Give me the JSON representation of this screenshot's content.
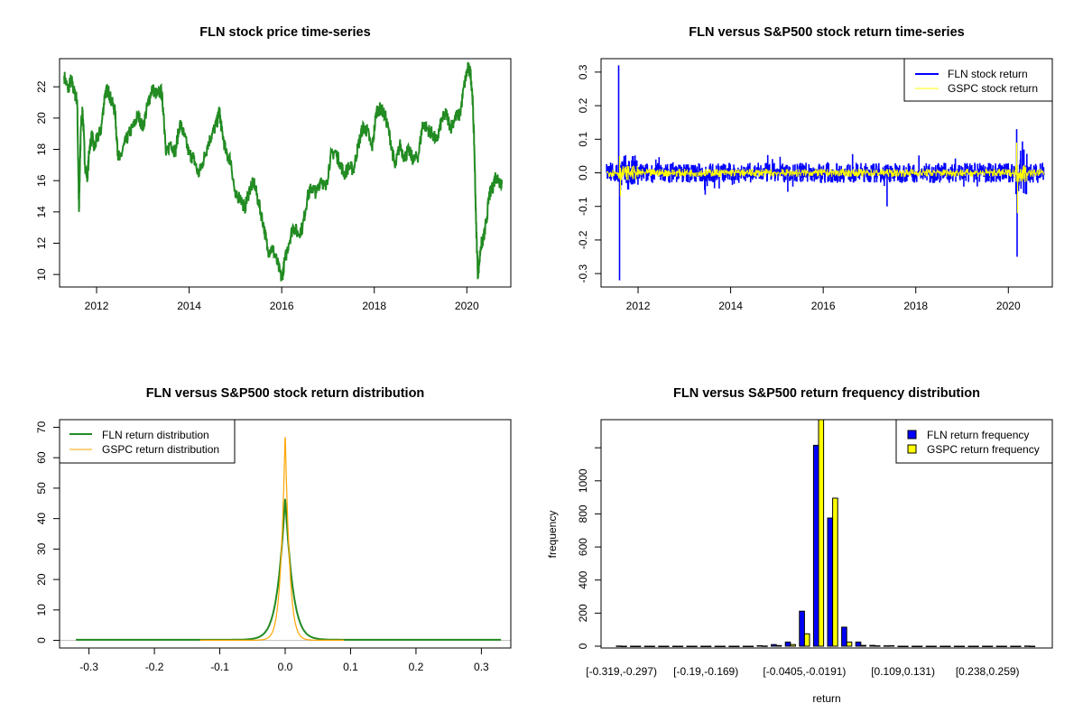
{
  "chart_data": [
    {
      "type": "line",
      "title": "FLN stock price time-series",
      "xlabel": "",
      "ylabel": "",
      "xlim": [
        2011.2,
        2020.95
      ],
      "ylim": [
        9.2,
        23.8
      ],
      "xticks": [
        2012,
        2014,
        2016,
        2018,
        2020
      ],
      "xtick_labels": [
        "2012",
        "2014",
        "2016",
        "2018",
        "2020"
      ],
      "yticks": [
        10,
        12,
        14,
        16,
        18,
        20,
        22
      ],
      "ytick_labels": [
        "10",
        "12",
        "14",
        "16",
        "18",
        "20",
        "22"
      ],
      "color": "#228B22",
      "series": [
        {
          "name": "FLN price",
          "x": [
            2011.3,
            2011.38,
            2011.45,
            2011.52,
            2011.58,
            2011.62,
            2011.66,
            2011.7,
            2011.75,
            2011.8,
            2011.85,
            2011.9,
            2011.95,
            2012.0,
            2012.1,
            2012.18,
            2012.25,
            2012.32,
            2012.4,
            2012.45,
            2012.5,
            2012.6,
            2012.7,
            2012.8,
            2012.9,
            2013.0,
            2013.1,
            2013.2,
            2013.3,
            2013.4,
            2013.45,
            2013.5,
            2013.6,
            2013.7,
            2013.8,
            2013.9,
            2014.0,
            2014.1,
            2014.2,
            2014.3,
            2014.4,
            2014.5,
            2014.6,
            2014.65,
            2014.7,
            2014.8,
            2014.9,
            2015.0,
            2015.1,
            2015.2,
            2015.3,
            2015.4,
            2015.5,
            2015.6,
            2015.7,
            2015.8,
            2015.9,
            2016.0,
            2016.05,
            2016.15,
            2016.25,
            2016.35,
            2016.45,
            2016.55,
            2016.65,
            2016.75,
            2016.85,
            2016.95,
            2017.05,
            2017.15,
            2017.25,
            2017.35,
            2017.45,
            2017.55,
            2017.65,
            2017.75,
            2017.85,
            2017.95,
            2018.05,
            2018.15,
            2018.25,
            2018.35,
            2018.45,
            2018.55,
            2018.65,
            2018.75,
            2018.85,
            2018.95,
            2019.05,
            2019.15,
            2019.25,
            2019.35,
            2019.45,
            2019.55,
            2019.65,
            2019.75,
            2019.85,
            2019.95,
            2020.02,
            2020.08,
            2020.12,
            2020.16,
            2020.2,
            2020.24,
            2020.3,
            2020.36,
            2020.42,
            2020.48,
            2020.55,
            2020.62,
            2020.7,
            2020.76
          ],
          "y": [
            22.7,
            21.8,
            22.5,
            21.6,
            21.2,
            14.0,
            19.5,
            20.5,
            17.0,
            16.2,
            18.2,
            18.9,
            18.0,
            18.6,
            19.3,
            21.6,
            21.8,
            21.1,
            20.4,
            18.0,
            17.3,
            18.3,
            19.0,
            19.5,
            20.2,
            19.4,
            20.8,
            21.9,
            21.5,
            21.7,
            20.3,
            17.6,
            18.5,
            17.8,
            19.7,
            18.8,
            17.7,
            17.4,
            16.4,
            17.2,
            18.3,
            19.0,
            19.7,
            20.5,
            19.3,
            17.7,
            17.3,
            14.9,
            15.0,
            14.2,
            15.4,
            15.9,
            14.6,
            13.3,
            11.5,
            11.7,
            10.8,
            9.7,
            10.6,
            12.0,
            13.1,
            12.6,
            13.0,
            14.9,
            15.6,
            15.2,
            16.2,
            15.4,
            17.5,
            17.9,
            17.2,
            16.4,
            16.9,
            16.7,
            18.2,
            19.4,
            19.2,
            18.0,
            20.5,
            20.6,
            20.0,
            18.6,
            16.8,
            18.3,
            17.5,
            17.9,
            17.3,
            17.6,
            19.7,
            19.3,
            19.0,
            18.5,
            19.8,
            20.3,
            19.4,
            20.1,
            20.2,
            22.2,
            23.2,
            22.9,
            21.5,
            18.3,
            13.2,
            9.9,
            11.8,
            12.3,
            13.3,
            15.0,
            15.5,
            16.3,
            16.0,
            15.8
          ]
        }
      ]
    },
    {
      "type": "line",
      "title": "FLN versus S&P500 stock return time-series",
      "xlabel": "",
      "ylabel": "",
      "xlim": [
        2011.2,
        2020.95
      ],
      "ylim": [
        -0.34,
        0.34
      ],
      "xticks": [
        2012,
        2014,
        2016,
        2018,
        2020
      ],
      "xtick_labels": [
        "2012",
        "2014",
        "2016",
        "2018",
        "2020"
      ],
      "yticks": [
        -0.3,
        -0.2,
        -0.1,
        0.0,
        0.1,
        0.2,
        0.3
      ],
      "ytick_labels": [
        "-0.3",
        "-0.2",
        "-0.1",
        "0.0",
        "0.1",
        "0.2",
        "0.3"
      ],
      "legend": {
        "position": "top-right",
        "entries": [
          "FLN stock return",
          "GSPC stock return"
        ]
      },
      "series": [
        {
          "name": "FLN stock return",
          "color": "#0000FF",
          "amplitude": 0.03,
          "spikes": [
            [
              2011.58,
              0.32
            ],
            [
              2011.6,
              -0.32
            ],
            [
              2013.45,
              -0.065
            ],
            [
              2017.38,
              -0.1
            ],
            [
              2020.18,
              0.13
            ],
            [
              2020.19,
              -0.25
            ]
          ]
        },
        {
          "name": "GSPC stock return",
          "color": "#FFFF00",
          "amplitude": 0.012,
          "spikes": [
            [
              2011.6,
              0.05
            ],
            [
              2011.62,
              -0.07
            ],
            [
              2020.18,
              0.09
            ],
            [
              2020.2,
              -0.12
            ]
          ]
        }
      ]
    },
    {
      "type": "line",
      "title": "FLN versus S&P500 stock return distribution",
      "xlabel": "",
      "ylabel": "",
      "xlim": [
        -0.345,
        0.345
      ],
      "ylim": [
        -2.5,
        72.5
      ],
      "xticks": [
        -0.3,
        -0.2,
        -0.1,
        0.0,
        0.1,
        0.2,
        0.3
      ],
      "xtick_labels": [
        "-0.3",
        "-0.2",
        "-0.1",
        "0.0",
        "0.1",
        "0.2",
        "0.3"
      ],
      "yticks": [
        0,
        10,
        20,
        30,
        40,
        50,
        60,
        70
      ],
      "ytick_labels": [
        "0",
        "10",
        "20",
        "30",
        "40",
        "50",
        "60",
        "70"
      ],
      "legend": {
        "position": "top-left",
        "entries": [
          "FLN return distribution",
          "GSPC return distribution"
        ]
      },
      "series": [
        {
          "name": "FLN return distribution",
          "color": "#228B22",
          "peak": 47,
          "width": 0.0145,
          "xrange": [
            -0.32,
            0.33
          ]
        },
        {
          "name": "GSPC return distribution",
          "color": "#FFA500",
          "peak": 68.5,
          "width": 0.0085,
          "xrange": [
            -0.13,
            0.09
          ]
        }
      ]
    },
    {
      "type": "bar",
      "title": "FLN versus S&P500 return frequency distribution",
      "xlabel": "return",
      "ylabel": "frequency",
      "ylim": [
        0,
        1370
      ],
      "yticks": [
        0,
        200,
        400,
        600,
        800,
        1000,
        1200
      ],
      "ytick_labels": [
        "0",
        "200",
        "400",
        "600",
        "800",
        "1000",
        ""
      ],
      "category_labels_shown": [
        {
          "index": 0,
          "label": "[-0.319,-0.297)"
        },
        {
          "index": 6,
          "label": "[-0.19,-0.169)"
        },
        {
          "index": 13,
          "label": "[-0.0405,-0.0191)"
        },
        {
          "index": 20,
          "label": "[0.109,0.131)"
        },
        {
          "index": 26,
          "label": "[0.238,0.259)"
        }
      ],
      "n_categories": 30,
      "legend": {
        "position": "top-right",
        "entries": [
          "FLN return frequency",
          "GSPC return frequency"
        ]
      },
      "series": [
        {
          "name": "FLN return frequency",
          "color": "#0000FF",
          "values": [
            1,
            0,
            0,
            0,
            0,
            0,
            0,
            0,
            0,
            0,
            3,
            10,
            25,
            212,
            1215,
            775,
            115,
            25,
            5,
            2,
            0,
            0,
            0,
            0,
            0,
            0,
            0,
            0,
            0,
            1
          ]
        },
        {
          "name": "GSPC return frequency",
          "color": "#FFFF00",
          "values": [
            0,
            0,
            0,
            0,
            0,
            0,
            0,
            0,
            0,
            0,
            1,
            4,
            10,
            75,
            1400,
            895,
            25,
            5,
            2,
            3,
            0,
            0,
            0,
            0,
            0,
            0,
            0,
            0,
            0,
            0
          ]
        }
      ]
    }
  ]
}
